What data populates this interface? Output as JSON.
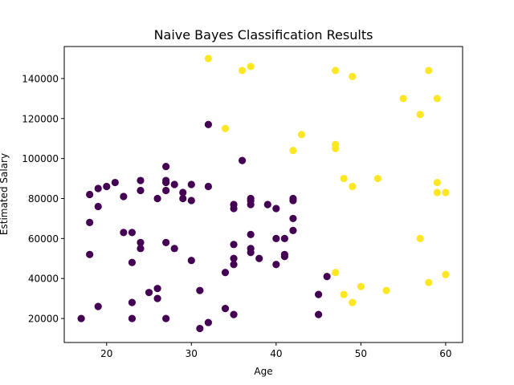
{
  "chart_data": {
    "type": "scatter",
    "title": "Naive Bayes Classification Results",
    "xlabel": "Age",
    "ylabel": "Estimated Salary",
    "xlim": [
      15,
      62
    ],
    "ylim": [
      8000,
      156000
    ],
    "xticks": [
      20,
      30,
      40,
      50,
      60
    ],
    "yticks": [
      20000,
      40000,
      60000,
      80000,
      100000,
      120000,
      140000
    ],
    "grid": false,
    "colors": {
      "class_0": "#440154",
      "class_1": "#fde725"
    },
    "series": [
      {
        "class": 0,
        "points": [
          [
            17,
            20000
          ],
          [
            18,
            82000
          ],
          [
            18,
            68000
          ],
          [
            18,
            52000
          ],
          [
            19,
            85000
          ],
          [
            19,
            76000
          ],
          [
            19,
            26000
          ],
          [
            20,
            86000
          ],
          [
            21,
            88000
          ],
          [
            22,
            81000
          ],
          [
            22,
            63000
          ],
          [
            23,
            63000
          ],
          [
            23,
            48000
          ],
          [
            23,
            28000
          ],
          [
            23,
            20000
          ],
          [
            24,
            89000
          ],
          [
            24,
            84000
          ],
          [
            24,
            58000
          ],
          [
            24,
            55000
          ],
          [
            25,
            33000
          ],
          [
            26,
            80000
          ],
          [
            26,
            35000
          ],
          [
            26,
            30000
          ],
          [
            27,
            96000
          ],
          [
            27,
            89000
          ],
          [
            27,
            88000
          ],
          [
            27,
            84000
          ],
          [
            27,
            58000
          ],
          [
            27,
            20000
          ],
          [
            28,
            87000
          ],
          [
            28,
            55000
          ],
          [
            29,
            83000
          ],
          [
            29,
            80000
          ],
          [
            30,
            87000
          ],
          [
            30,
            79000
          ],
          [
            30,
            49000
          ],
          [
            31,
            34000
          ],
          [
            31,
            15000
          ],
          [
            32,
            117000
          ],
          [
            32,
            86000
          ],
          [
            32,
            18000
          ],
          [
            34,
            43000
          ],
          [
            34,
            25000
          ],
          [
            35,
            77000
          ],
          [
            35,
            75000
          ],
          [
            35,
            57000
          ],
          [
            35,
            50000
          ],
          [
            35,
            47000
          ],
          [
            35,
            22000
          ],
          [
            36,
            99000
          ],
          [
            37,
            80000
          ],
          [
            37,
            79000
          ],
          [
            37,
            77000
          ],
          [
            37,
            62000
          ],
          [
            37,
            55000
          ],
          [
            37,
            53000
          ],
          [
            38,
            50000
          ],
          [
            39,
            77000
          ],
          [
            40,
            75000
          ],
          [
            40,
            60000
          ],
          [
            40,
            47000
          ],
          [
            41,
            60000
          ],
          [
            41,
            52000
          ],
          [
            41,
            51000
          ],
          [
            42,
            80000
          ],
          [
            42,
            79000
          ],
          [
            42,
            70000
          ],
          [
            42,
            64000
          ],
          [
            45,
            32000
          ],
          [
            45,
            22000
          ],
          [
            46,
            41000
          ]
        ]
      },
      {
        "class": 1,
        "points": [
          [
            32,
            150000
          ],
          [
            34,
            115000
          ],
          [
            36,
            144000
          ],
          [
            37,
            146000
          ],
          [
            42,
            104000
          ],
          [
            43,
            112000
          ],
          [
            47,
            144000
          ],
          [
            47,
            107000
          ],
          [
            47,
            105000
          ],
          [
            47,
            43000
          ],
          [
            48,
            90000
          ],
          [
            48,
            32000
          ],
          [
            49,
            141000
          ],
          [
            49,
            86000
          ],
          [
            49,
            28000
          ],
          [
            50,
            36000
          ],
          [
            52,
            90000
          ],
          [
            53,
            34000
          ],
          [
            55,
            130000
          ],
          [
            57,
            122000
          ],
          [
            57,
            60000
          ],
          [
            58,
            144000
          ],
          [
            58,
            38000
          ],
          [
            59,
            130000
          ],
          [
            59,
            88000
          ],
          [
            59,
            83000
          ],
          [
            60,
            83000
          ],
          [
            60,
            42000
          ]
        ]
      }
    ]
  }
}
